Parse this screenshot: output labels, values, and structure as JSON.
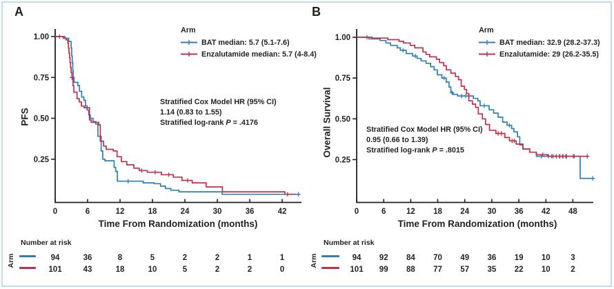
{
  "figure": {
    "background": "#ffffff",
    "border_color": "#bcdde9",
    "ink_color": "#231f20"
  },
  "chart_data": [
    {
      "type": "line",
      "subtype": "kaplan-meier-step",
      "panel_label": "A",
      "ylabel": "PFS",
      "xlabel": "Time From Randomization (months)",
      "xlim": [
        0,
        45
      ],
      "ylim": [
        0,
        1.0
      ],
      "grid": false,
      "xticks": [
        0,
        6,
        12,
        18,
        24,
        30,
        36,
        42
      ],
      "yticks": [
        "1.00",
        "0.75",
        "0.50",
        "0.25"
      ],
      "ytick_values": [
        1.0,
        0.75,
        0.5,
        0.25
      ],
      "legend": {
        "title": "Arm",
        "position": "top-right",
        "entries": [
          {
            "arm": "BAT",
            "label": "BAT median: 5.7 (5.1-7.6)",
            "color": "#2e7fb9"
          },
          {
            "arm": "Enzalutamide",
            "label": "Enzalutamide median: 5.7 (4-8.4)",
            "color": "#c13048"
          }
        ]
      },
      "annotation": {
        "line1": "Stratified Cox Model HR (95% CI)",
        "line2": "1.14 (0.83 to 1.55)",
        "p_prefix": "Stratified log-rank",
        "p_symbol": "P",
        "p_value": "= .4176"
      },
      "series": [
        {
          "name": "BAT",
          "color": "#2e7fb9",
          "points": [
            [
              0,
              1.0
            ],
            [
              1.8,
              0.99
            ],
            [
              2.5,
              0.97
            ],
            [
              2.95,
              0.93
            ],
            [
              3.05,
              0.88
            ],
            [
              3.15,
              0.84
            ],
            [
              3.25,
              0.79
            ],
            [
              3.35,
              0.75
            ],
            [
              3.5,
              0.72
            ],
            [
              4.2,
              0.7
            ],
            [
              4.5,
              0.665
            ],
            [
              4.9,
              0.63
            ],
            [
              5.3,
              0.61
            ],
            [
              5.6,
              0.575
            ],
            [
              5.9,
              0.55
            ],
            [
              6.2,
              0.52
            ],
            [
              6.5,
              0.5
            ],
            [
              7.0,
              0.48
            ],
            [
              7.5,
              0.465
            ],
            [
              7.9,
              0.39
            ],
            [
              8.5,
              0.3
            ],
            [
              8.8,
              0.25
            ],
            [
              9.2,
              0.24
            ],
            [
              10.9,
              0.2
            ],
            [
              11.2,
              0.175
            ],
            [
              11.5,
              0.115
            ],
            [
              16.3,
              0.105
            ],
            [
              18.3,
              0.1
            ],
            [
              19.5,
              0.085
            ],
            [
              20.4,
              0.07
            ],
            [
              21.4,
              0.06
            ],
            [
              22.9,
              0.05
            ],
            [
              30.9,
              0.035
            ],
            [
              45.2,
              0.035
            ]
          ],
          "censors": [
            [
              0.8,
              1.0
            ],
            [
              13.5,
              0.115
            ],
            [
              45.0,
              0.035
            ]
          ]
        },
        {
          "name": "Enzalutamide",
          "color": "#c13048",
          "points": [
            [
              0,
              1.0
            ],
            [
              1.5,
              0.99
            ],
            [
              2.0,
              0.98
            ],
            [
              2.35,
              0.96
            ],
            [
              2.45,
              0.93
            ],
            [
              2.55,
              0.9
            ],
            [
              2.65,
              0.87
            ],
            [
              2.75,
              0.84
            ],
            [
              2.85,
              0.81
            ],
            [
              2.95,
              0.78
            ],
            [
              3.1,
              0.75
            ],
            [
              3.3,
              0.7
            ],
            [
              3.45,
              0.66
            ],
            [
              4.05,
              0.62
            ],
            [
              4.45,
              0.6
            ],
            [
              4.85,
              0.575
            ],
            [
              5.35,
              0.565
            ],
            [
              6.35,
              0.49
            ],
            [
              6.65,
              0.475
            ],
            [
              8.05,
              0.46
            ],
            [
              8.35,
              0.36
            ],
            [
              8.95,
              0.33
            ],
            [
              9.45,
              0.31
            ],
            [
              10.75,
              0.3
            ],
            [
              11.45,
              0.265
            ],
            [
              12.25,
              0.235
            ],
            [
              13.25,
              0.215
            ],
            [
              14.55,
              0.195
            ],
            [
              15.55,
              0.18
            ],
            [
              17.05,
              0.17
            ],
            [
              19.65,
              0.155
            ],
            [
              21.85,
              0.14
            ],
            [
              23.45,
              0.12
            ],
            [
              25.35,
              0.105
            ],
            [
              27.95,
              0.08
            ],
            [
              30.95,
              0.05
            ],
            [
              42.5,
              0.035
            ],
            [
              44.5,
              0.035
            ]
          ],
          "censors": [
            [
              3.1,
              0.75
            ],
            [
              16.0,
              0.18
            ],
            [
              18.5,
              0.17
            ],
            [
              21.0,
              0.155
            ],
            [
              24.5,
              0.12
            ],
            [
              43.0,
              0.035
            ]
          ]
        }
      ],
      "number_at_risk": {
        "title": "Number at risk",
        "row_label": "Arm",
        "times": [
          0,
          6,
          12,
          18,
          24,
          30,
          36,
          42
        ],
        "rows": [
          {
            "arm": "BAT",
            "counts": [
              94,
              36,
              8,
              5,
              2,
              2,
              1,
              1
            ]
          },
          {
            "arm": "Enzalutamide",
            "counts": [
              101,
              43,
              18,
              10,
              5,
              2,
              2,
              0
            ]
          }
        ]
      }
    },
    {
      "type": "line",
      "subtype": "kaplan-meier-step",
      "panel_label": "B",
      "ylabel": "Overall Survival",
      "xlabel": "Time From Randomization (months)",
      "xlim": [
        0,
        53
      ],
      "ylim": [
        0,
        1.0
      ],
      "grid": false,
      "xticks": [
        0,
        6,
        12,
        18,
        24,
        30,
        36,
        42,
        48
      ],
      "yticks": [
        "1.00",
        "0.75",
        "0.50",
        "0.25"
      ],
      "ytick_values": [
        1.0,
        0.75,
        0.5,
        0.25
      ],
      "legend": {
        "title": "Arm",
        "position": "top-right",
        "entries": [
          {
            "arm": "BAT",
            "label": "BAT median: 32.9 (28.2-37.3)",
            "color": "#2e7fb9"
          },
          {
            "arm": "Enzalutamide",
            "label": "Enzalutamide: 29 (26.2-35.5)",
            "color": "#c13048"
          }
        ]
      },
      "annotation": {
        "line1": "Stratified Cox Model HR (95% CI)",
        "line2": "0.95 (0.66 to 1.39)",
        "p_prefix": "Stratified log-rank",
        "p_symbol": "P",
        "p_value": "= .8015"
      },
      "series": [
        {
          "name": "BAT",
          "color": "#2e7fb9",
          "points": [
            [
              0,
              1.0
            ],
            [
              2.7,
              0.99
            ],
            [
              5.2,
              0.98
            ],
            [
              6.5,
              0.965
            ],
            [
              7.5,
              0.95
            ],
            [
              9.0,
              0.935
            ],
            [
              9.7,
              0.92
            ],
            [
              11.0,
              0.9
            ],
            [
              12.4,
              0.885
            ],
            [
              13.4,
              0.87
            ],
            [
              14.3,
              0.855
            ],
            [
              15.4,
              0.84
            ],
            [
              16.4,
              0.82
            ],
            [
              17.2,
              0.8
            ],
            [
              17.9,
              0.77
            ],
            [
              18.9,
              0.75
            ],
            [
              19.9,
              0.725
            ],
            [
              20.5,
              0.695
            ],
            [
              20.9,
              0.66
            ],
            [
              21.4,
              0.65
            ],
            [
              22.4,
              0.64
            ],
            [
              25.9,
              0.625
            ],
            [
              26.9,
              0.61
            ],
            [
              27.4,
              0.58
            ],
            [
              29.4,
              0.555
            ],
            [
              30.4,
              0.535
            ],
            [
              31.4,
              0.51
            ],
            [
              32.4,
              0.48
            ],
            [
              33.4,
              0.46
            ],
            [
              34.4,
              0.44
            ],
            [
              34.9,
              0.42
            ],
            [
              35.7,
              0.39
            ],
            [
              36.2,
              0.34
            ],
            [
              36.9,
              0.315
            ],
            [
              38.4,
              0.295
            ],
            [
              39.9,
              0.27
            ],
            [
              49.6,
              0.135
            ],
            [
              52.6,
              0.135
            ]
          ],
          "censors": [
            [
              2.3,
              1.0
            ],
            [
              10.3,
              0.92
            ],
            [
              13.0,
              0.885
            ],
            [
              19.4,
              0.75
            ],
            [
              21.2,
              0.66
            ],
            [
              23.3,
              0.64
            ],
            [
              24.2,
              0.64
            ],
            [
              28.3,
              0.58
            ],
            [
              33.9,
              0.46
            ],
            [
              41.0,
              0.27
            ],
            [
              42.6,
              0.27
            ],
            [
              43.6,
              0.27
            ],
            [
              44.3,
              0.27
            ],
            [
              45.0,
              0.27
            ],
            [
              45.7,
              0.27
            ],
            [
              46.4,
              0.27
            ],
            [
              48.3,
              0.27
            ],
            [
              52.4,
              0.135
            ]
          ]
        },
        {
          "name": "Enzalutamide",
          "color": "#c13048",
          "points": [
            [
              0,
              1.0
            ],
            [
              3.4,
              0.995
            ],
            [
              6.9,
              0.985
            ],
            [
              9.4,
              0.975
            ],
            [
              10.4,
              0.965
            ],
            [
              11.9,
              0.95
            ],
            [
              12.9,
              0.935
            ],
            [
              14.7,
              0.91
            ],
            [
              15.4,
              0.895
            ],
            [
              16.2,
              0.88
            ],
            [
              17.7,
              0.865
            ],
            [
              18.4,
              0.845
            ],
            [
              19.3,
              0.825
            ],
            [
              19.9,
              0.8
            ],
            [
              20.9,
              0.78
            ],
            [
              21.9,
              0.76
            ],
            [
              22.6,
              0.74
            ],
            [
              23.2,
              0.7
            ],
            [
              23.9,
              0.68
            ],
            [
              24.4,
              0.655
            ],
            [
              24.9,
              0.61
            ],
            [
              25.7,
              0.59
            ],
            [
              26.4,
              0.57
            ],
            [
              27.0,
              0.53
            ],
            [
              27.9,
              0.5
            ],
            [
              28.6,
              0.465
            ],
            [
              29.5,
              0.43
            ],
            [
              30.9,
              0.41
            ],
            [
              32.9,
              0.385
            ],
            [
              33.9,
              0.365
            ],
            [
              35.4,
              0.345
            ],
            [
              36.9,
              0.315
            ],
            [
              38.4,
              0.295
            ],
            [
              39.9,
              0.28
            ],
            [
              42.4,
              0.27
            ],
            [
              51.3,
              0.27
            ]
          ],
          "censors": [
            [
              31.4,
              0.41
            ],
            [
              32.1,
              0.41
            ],
            [
              34.5,
              0.365
            ],
            [
              35.0,
              0.365
            ],
            [
              41.3,
              0.28
            ],
            [
              43.3,
              0.27
            ],
            [
              44.3,
              0.27
            ],
            [
              45.1,
              0.27
            ],
            [
              45.8,
              0.27
            ],
            [
              46.6,
              0.27
            ],
            [
              48.1,
              0.27
            ],
            [
              51.2,
              0.27
            ]
          ]
        }
      ],
      "number_at_risk": {
        "title": "Number at risk",
        "row_label": "Arm",
        "times": [
          0,
          6,
          12,
          18,
          24,
          30,
          36,
          42,
          48
        ],
        "rows": [
          {
            "arm": "BAT",
            "counts": [
              94,
              92,
              84,
              70,
              49,
              36,
              19,
              10,
              3
            ]
          },
          {
            "arm": "Enzalutamide",
            "counts": [
              101,
              99,
              88,
              77,
              57,
              35,
              22,
              10,
              2
            ]
          }
        ]
      }
    }
  ]
}
